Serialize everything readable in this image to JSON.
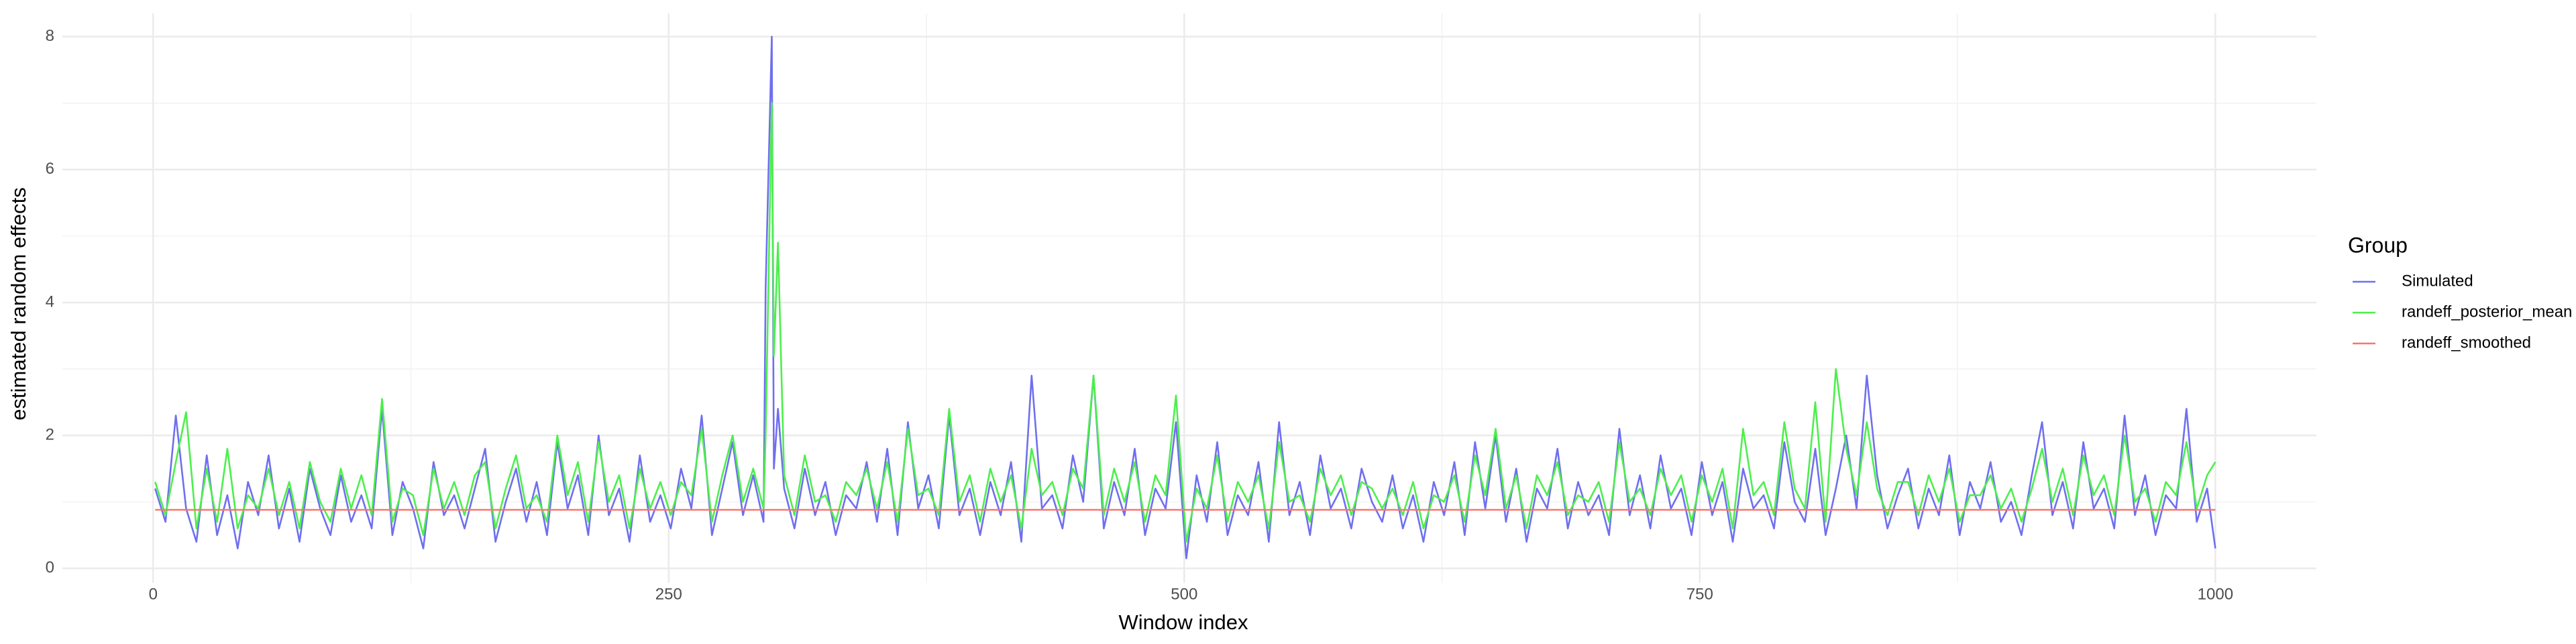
{
  "chart_data": {
    "type": "line",
    "x_label": "Window index",
    "y_label": "estimated random effects",
    "legend_title": "Group",
    "legend": "right",
    "x": [
      1,
      6,
      11,
      16,
      21,
      26,
      31,
      36,
      41,
      46,
      51,
      56,
      61,
      66,
      71,
      76,
      81,
      86,
      91,
      96,
      101,
      106,
      111,
      116,
      121,
      126,
      131,
      136,
      141,
      146,
      151,
      156,
      161,
      166,
      171,
      176,
      181,
      186,
      191,
      196,
      201,
      206,
      211,
      216,
      221,
      226,
      231,
      236,
      241,
      246,
      251,
      256,
      261,
      266,
      271,
      276,
      281,
      286,
      291,
      296,
      297,
      300,
      301,
      303,
      306,
      311,
      316,
      321,
      326,
      331,
      336,
      341,
      346,
      351,
      356,
      361,
      366,
      371,
      376,
      381,
      386,
      391,
      396,
      401,
      406,
      411,
      416,
      421,
      426,
      431,
      436,
      441,
      446,
      451,
      456,
      461,
      466,
      471,
      476,
      481,
      486,
      491,
      496,
      501,
      506,
      511,
      516,
      521,
      526,
      531,
      536,
      541,
      546,
      551,
      556,
      561,
      566,
      571,
      576,
      581,
      586,
      591,
      596,
      601,
      606,
      611,
      616,
      621,
      626,
      631,
      636,
      641,
      646,
      651,
      656,
      661,
      666,
      671,
      676,
      681,
      686,
      691,
      696,
      701,
      706,
      711,
      716,
      721,
      726,
      731,
      736,
      741,
      746,
      751,
      756,
      761,
      766,
      771,
      776,
      781,
      786,
      791,
      796,
      801,
      806,
      811,
      816,
      821,
      826,
      831,
      836,
      841,
      846,
      851,
      856,
      861,
      866,
      871,
      876,
      881,
      886,
      891,
      896,
      901,
      906,
      911,
      916,
      921,
      926,
      931,
      936,
      941,
      946,
      951,
      956,
      961,
      966,
      971,
      976,
      981,
      986,
      991,
      996,
      1000
    ],
    "series": [
      {
        "name": "Simulated",
        "color": "#6f6ff0",
        "values": [
          1.2,
          0.7,
          2.3,
          0.9,
          0.4,
          1.7,
          0.5,
          1.1,
          0.3,
          1.3,
          0.8,
          1.7,
          0.6,
          1.2,
          0.4,
          1.5,
          0.9,
          0.5,
          1.4,
          0.7,
          1.1,
          0.6,
          2.4,
          0.5,
          1.3,
          0.9,
          0.3,
          1.6,
          0.8,
          1.1,
          0.6,
          1.2,
          1.8,
          0.4,
          1.0,
          1.5,
          0.7,
          1.3,
          0.5,
          1.9,
          0.9,
          1.4,
          0.5,
          2.0,
          0.8,
          1.2,
          0.4,
          1.7,
          0.7,
          1.1,
          0.6,
          1.5,
          0.9,
          2.3,
          0.5,
          1.2,
          1.9,
          0.8,
          1.4,
          0.7,
          4.2,
          8.0,
          1.5,
          2.4,
          1.2,
          0.6,
          1.5,
          0.8,
          1.3,
          0.5,
          1.1,
          0.9,
          1.6,
          0.7,
          1.8,
          0.5,
          2.2,
          0.9,
          1.4,
          0.6,
          2.3,
          0.8,
          1.2,
          0.5,
          1.3,
          0.8,
          1.6,
          0.4,
          2.9,
          0.9,
          1.1,
          0.6,
          1.7,
          1.0,
          2.9,
          0.6,
          1.3,
          0.8,
          1.8,
          0.5,
          1.2,
          0.9,
          2.2,
          0.15,
          1.4,
          0.7,
          1.9,
          0.5,
          1.1,
          0.8,
          1.6,
          0.4,
          2.2,
          0.8,
          1.3,
          0.5,
          1.7,
          0.9,
          1.2,
          0.6,
          1.5,
          1.0,
          0.7,
          1.4,
          0.6,
          1.1,
          0.4,
          1.3,
          0.8,
          1.6,
          0.5,
          1.9,
          0.9,
          2.0,
          0.7,
          1.5,
          0.4,
          1.2,
          0.9,
          1.8,
          0.6,
          1.3,
          0.8,
          1.1,
          0.5,
          2.1,
          0.8,
          1.4,
          0.6,
          1.7,
          0.9,
          1.2,
          0.5,
          1.6,
          0.8,
          1.3,
          0.4,
          1.5,
          0.9,
          1.1,
          0.6,
          1.9,
          1.0,
          0.7,
          1.8,
          0.5,
          1.2,
          2.0,
          0.9,
          2.9,
          1.4,
          0.6,
          1.1,
          1.5,
          0.6,
          1.2,
          0.8,
          1.7,
          0.5,
          1.3,
          0.9,
          1.6,
          0.7,
          1.0,
          0.5,
          1.4,
          2.2,
          0.8,
          1.3,
          0.6,
          1.9,
          0.9,
          1.2,
          0.6,
          2.3,
          0.8,
          1.4,
          0.5,
          1.1,
          0.9,
          2.4,
          0.7,
          1.2,
          0.3
        ]
      },
      {
        "name": "randeff_posterior_mean",
        "color": "#4cef4c",
        "values": [
          1.3,
          0.8,
          1.6,
          2.35,
          0.6,
          1.5,
          0.7,
          1.8,
          0.6,
          1.1,
          0.9,
          1.5,
          0.8,
          1.3,
          0.6,
          1.6,
          1.0,
          0.7,
          1.5,
          0.9,
          1.4,
          0.8,
          2.55,
          0.7,
          1.2,
          1.1,
          0.5,
          1.5,
          0.9,
          1.3,
          0.8,
          1.4,
          1.6,
          0.6,
          1.2,
          1.7,
          0.9,
          1.1,
          0.7,
          2.0,
          1.1,
          1.6,
          0.7,
          1.9,
          1.0,
          1.4,
          0.6,
          1.5,
          0.9,
          1.3,
          0.8,
          1.3,
          1.1,
          2.1,
          0.7,
          1.4,
          2.0,
          1.0,
          1.5,
          0.9,
          2.0,
          7.0,
          3.2,
          4.9,
          1.4,
          0.8,
          1.7,
          1.0,
          1.1,
          0.7,
          1.3,
          1.1,
          1.5,
          0.9,
          1.6,
          0.7,
          2.1,
          1.1,
          1.2,
          0.8,
          2.4,
          1.0,
          1.4,
          0.7,
          1.5,
          1.0,
          1.4,
          0.6,
          1.8,
          1.1,
          1.3,
          0.8,
          1.5,
          1.2,
          2.9,
          0.8,
          1.5,
          1.0,
          1.6,
          0.7,
          1.4,
          1.1,
          2.6,
          0.4,
          1.2,
          0.9,
          1.7,
          0.7,
          1.3,
          1.0,
          1.4,
          0.6,
          1.9,
          1.0,
          1.1,
          0.7,
          1.5,
          1.1,
          1.4,
          0.8,
          1.3,
          1.2,
          0.9,
          1.2,
          0.8,
          1.3,
          0.6,
          1.1,
          1.0,
          1.4,
          0.7,
          1.7,
          1.1,
          2.1,
          0.9,
          1.4,
          0.6,
          1.4,
          1.1,
          1.6,
          0.8,
          1.1,
          1.0,
          1.3,
          0.7,
          1.9,
          1.0,
          1.2,
          0.8,
          1.5,
          1.1,
          1.4,
          0.7,
          1.4,
          1.0,
          1.5,
          0.6,
          2.1,
          1.1,
          1.3,
          0.8,
          2.2,
          1.2,
          0.9,
          2.5,
          0.7,
          3.0,
          1.8,
          1.1,
          2.2,
          1.2,
          0.8,
          1.3,
          1.3,
          0.8,
          1.4,
          1.0,
          1.5,
          0.7,
          1.1,
          1.1,
          1.4,
          0.9,
          1.2,
          0.7,
          1.2,
          1.8,
          1.0,
          1.5,
          0.8,
          1.7,
          1.1,
          1.4,
          0.8,
          2.0,
          1.0,
          1.2,
          0.7,
          1.3,
          1.1,
          1.9,
          0.9,
          1.4,
          1.6
        ]
      },
      {
        "name": "randeff_smoothed",
        "color": "#f8766d",
        "x": [
          1,
          1000
        ],
        "values": [
          0.88,
          0.88
        ]
      }
    ],
    "xlim": [
      -44,
      1049
    ],
    "ylim": [
      -0.22,
      8.35
    ],
    "xticks": [
      0,
      250,
      500,
      750,
      1000
    ],
    "yticks": [
      0,
      2,
      4,
      6,
      8
    ],
    "x_minor_ticks": [
      125,
      375,
      625,
      875
    ],
    "y_minor_ticks": [
      1,
      3,
      5,
      7
    ],
    "grid": true
  }
}
